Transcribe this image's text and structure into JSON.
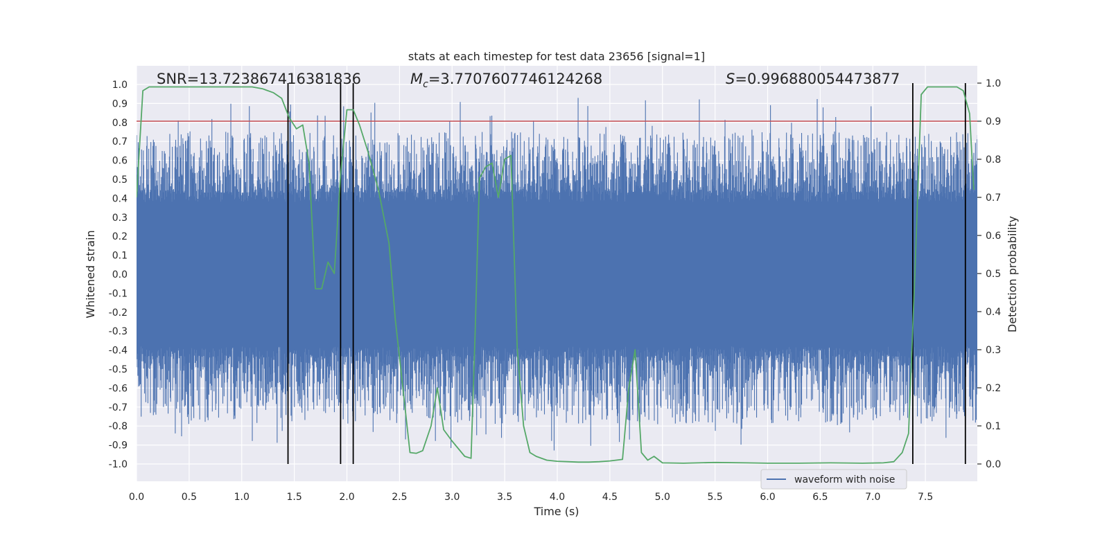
{
  "chart_data": {
    "type": "line",
    "title": "stats at each timestep for test data 23656 [signal=1]",
    "xlabel": "Time (s)",
    "ylabel": "Whitened strain",
    "y2label": "Detection probability",
    "xlim": [
      0.0,
      8.0
    ],
    "ylim": [
      -1.05,
      1.05
    ],
    "y2lim": [
      -0.05,
      1.05
    ],
    "xticks": [
      "0.0",
      "0.5",
      "1.0",
      "1.5",
      "2.0",
      "2.5",
      "3.0",
      "3.5",
      "4.0",
      "4.5",
      "5.0",
      "5.5",
      "6.0",
      "6.5",
      "7.0",
      "7.5"
    ],
    "xtick_values": [
      0.0,
      0.5,
      1.0,
      1.5,
      2.0,
      2.5,
      3.0,
      3.5,
      4.0,
      4.5,
      5.0,
      5.5,
      6.0,
      6.5,
      7.0,
      7.5
    ],
    "yticks": [
      "1.0",
      "0.9",
      "0.8",
      "0.7",
      "0.6",
      "0.5",
      "0.4",
      "0.3",
      "0.2",
      "0.1",
      "0.0",
      "-0.1",
      "-0.2",
      "-0.3",
      "-0.4",
      "-0.5",
      "-0.6",
      "-0.7",
      "-0.8",
      "-0.9",
      "-1.0"
    ],
    "ytick_values": [
      1.0,
      0.9,
      0.8,
      0.7,
      0.6,
      0.5,
      0.4,
      0.3,
      0.2,
      0.1,
      0.0,
      -0.1,
      -0.2,
      -0.3,
      -0.4,
      -0.5,
      -0.6,
      -0.7,
      -0.8,
      -0.9,
      -1.0
    ],
    "y2ticks": [
      "1.0",
      "0.9",
      "0.8",
      "0.7",
      "0.6",
      "0.5",
      "0.4",
      "0.3",
      "0.2",
      "0.1",
      "0.0"
    ],
    "y2tick_values": [
      1.0,
      0.9,
      0.8,
      0.7,
      0.6,
      0.5,
      0.4,
      0.3,
      0.2,
      0.1,
      0.0
    ],
    "annotations": {
      "snr": "SNR=13.723867416381836",
      "mc_symbol": "M",
      "mc_sub": "c",
      "mc_value": "=3.7707607746124268",
      "s_symbol": "S",
      "s_value": "=0.996880054473877"
    },
    "legend": {
      "label": "waveform with noise",
      "position": "bottom-right"
    },
    "threshold": {
      "y2": 0.9,
      "color": "#c44e52"
    },
    "vertical_lines": [
      1.44,
      1.94,
      2.06,
      7.38,
      7.88
    ],
    "waveform": {
      "name": "waveform with noise",
      "color": "#4c72b0",
      "t_start": 0.0,
      "t_end": 8.0,
      "n_samples": 2000,
      "core_amplitude": 0.38,
      "peak_amplitude": 0.93,
      "seed": 23656
    },
    "series": [
      {
        "name": "detection probability",
        "axis": "right",
        "color": "#55a868",
        "x": [
          0.0,
          0.06,
          0.12,
          0.3,
          0.6,
          0.9,
          1.1,
          1.2,
          1.3,
          1.38,
          1.45,
          1.52,
          1.58,
          1.64,
          1.7,
          1.76,
          1.82,
          1.88,
          1.94,
          2.0,
          2.06,
          2.12,
          2.2,
          2.3,
          2.4,
          2.46,
          2.52,
          2.6,
          2.66,
          2.72,
          2.8,
          2.86,
          2.92,
          3.0,
          3.06,
          3.12,
          3.18,
          3.22,
          3.26,
          3.32,
          3.38,
          3.44,
          3.5,
          3.56,
          3.62,
          3.68,
          3.74,
          3.8,
          3.9,
          4.0,
          4.1,
          4.2,
          4.3,
          4.4,
          4.5,
          4.56,
          4.62,
          4.68,
          4.74,
          4.8,
          4.86,
          4.92,
          5.0,
          5.2,
          5.5,
          5.8,
          6.0,
          6.3,
          6.6,
          6.9,
          7.1,
          7.2,
          7.28,
          7.34,
          7.4,
          7.46,
          7.52,
          7.6,
          7.7,
          7.76,
          7.8,
          7.86,
          7.92,
          7.96
        ],
        "y": [
          0.7,
          0.98,
          0.99,
          0.99,
          0.99,
          0.99,
          0.99,
          0.985,
          0.975,
          0.96,
          0.91,
          0.88,
          0.89,
          0.79,
          0.46,
          0.46,
          0.53,
          0.5,
          0.76,
          0.93,
          0.93,
          0.89,
          0.82,
          0.72,
          0.58,
          0.38,
          0.23,
          0.03,
          0.028,
          0.035,
          0.1,
          0.2,
          0.09,
          0.06,
          0.04,
          0.02,
          0.015,
          0.35,
          0.75,
          0.78,
          0.79,
          0.7,
          0.8,
          0.81,
          0.3,
          0.1,
          0.03,
          0.02,
          0.01,
          0.007,
          0.006,
          0.005,
          0.005,
          0.006,
          0.008,
          0.01,
          0.012,
          0.2,
          0.3,
          0.03,
          0.01,
          0.02,
          0.003,
          0.002,
          0.004,
          0.003,
          0.002,
          0.002,
          0.003,
          0.002,
          0.003,
          0.006,
          0.03,
          0.08,
          0.5,
          0.97,
          0.99,
          0.99,
          0.99,
          0.99,
          0.99,
          0.98,
          0.92,
          0.72
        ]
      }
    ]
  }
}
